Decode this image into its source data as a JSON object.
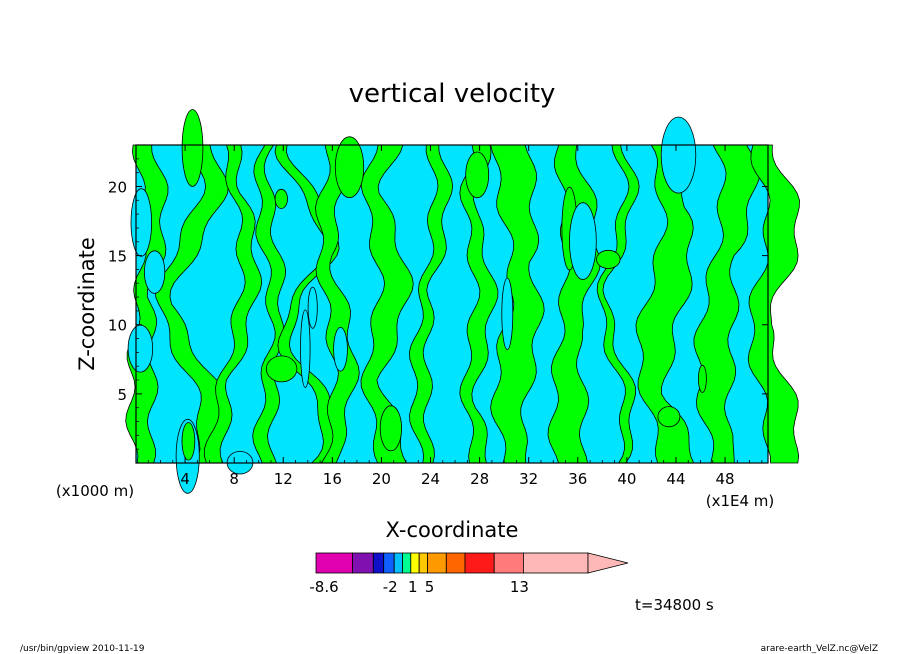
{
  "chart_data": {
    "type": "heatmap",
    "title": "vertical velocity",
    "xlabel": "X-coordinate",
    "ylabel": "Z-coordinate",
    "x_unit_label": "(x1000 m)",
    "x_scale_label": "(x1E4 m)",
    "xlim": [
      0,
      51.5
    ],
    "ylim": [
      0,
      23
    ],
    "x_ticks": [
      "4",
      "8",
      "12",
      "16",
      "20",
      "24",
      "28",
      "32",
      "36",
      "40",
      "44",
      "48"
    ],
    "y_ticks": [
      "5",
      "10",
      "15",
      "20"
    ],
    "dominant_fields": [
      {
        "name": "positive",
        "color": "#00ff00"
      },
      {
        "name": "negative",
        "color": "#00e5ff"
      }
    ],
    "colorbar": {
      "tick_labels": [
        "-8.6",
        "-2",
        "1",
        "5",
        "13"
      ],
      "colors": [
        "#e000b0",
        "#8010b0",
        "#1010c8",
        "#1060ff",
        "#00bfff",
        "#00ff90",
        "#ffff00",
        "#ffc800",
        "#ff9900",
        "#ff6600",
        "#ff1a1a",
        "#ff7a7a",
        "#ffb8b8"
      ],
      "extend": "max"
    },
    "time_label": "t=34800 s"
  },
  "footer": {
    "left": "/usr/bin/gpview   2010-11-19",
    "right": "arare-earth_VelZ.nc@VelZ"
  }
}
